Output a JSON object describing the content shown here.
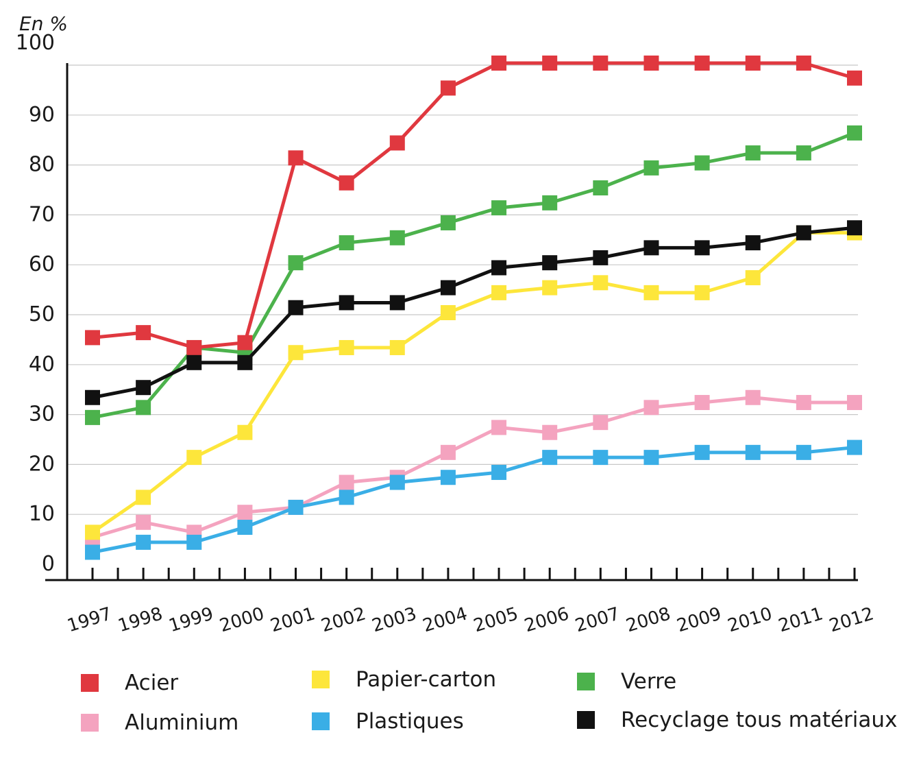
{
  "chart_data": {
    "type": "line",
    "unit_label": "En %",
    "categories": [
      "1997",
      "1998",
      "1999",
      "2000",
      "2001",
      "2002",
      "2003",
      "2004",
      "2005",
      "2006",
      "2007",
      "2008",
      "2009",
      "2010",
      "2011",
      "2012"
    ],
    "ylim": [
      0,
      100
    ],
    "y_ticks": [
      0,
      10,
      20,
      30,
      40,
      50,
      60,
      70,
      80,
      90,
      100
    ],
    "grid": true,
    "legend_position": "bottom",
    "series": [
      {
        "name": "Acier",
        "color": "#e0383f",
        "values": [
          45,
          46,
          43,
          44,
          81,
          76,
          84,
          95,
          100,
          100,
          100,
          100,
          100,
          100,
          100,
          97
        ]
      },
      {
        "name": "Aluminium",
        "color": "#f4a3bf",
        "values": [
          5,
          8,
          6,
          10,
          11,
          16,
          17,
          22,
          27,
          26,
          28,
          31,
          32,
          33,
          32,
          32
        ]
      },
      {
        "name": "Papier-carton",
        "color": "#fde63b",
        "values": [
          6,
          13,
          21,
          26,
          42,
          43,
          43,
          50,
          54,
          55,
          56,
          54,
          54,
          57,
          66,
          66
        ]
      },
      {
        "name": "Plastiques",
        "color": "#3aaee6",
        "values": [
          2,
          4,
          4,
          7,
          11,
          13,
          16,
          17,
          18,
          21,
          21,
          21,
          22,
          22,
          22,
          23
        ]
      },
      {
        "name": "Verre",
        "color": "#4cb24c",
        "values": [
          29,
          31,
          43,
          42,
          60,
          64,
          65,
          68,
          71,
          72,
          75,
          79,
          80,
          82,
          82,
          86
        ]
      },
      {
        "name": "Recyclage tous matériaux",
        "color": "#111111",
        "values": [
          33,
          35,
          40,
          40,
          51,
          52,
          52,
          55,
          59,
          60,
          61,
          63,
          63,
          64,
          66,
          67
        ]
      }
    ]
  }
}
